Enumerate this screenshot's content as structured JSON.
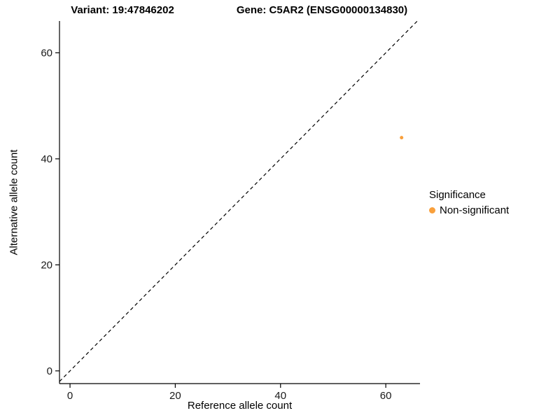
{
  "header": {
    "title_variant": "Variant: 19:47846202",
    "title_gene": "Gene: C5AR2 (ENSG00000134830)"
  },
  "chart_data": {
    "type": "scatter",
    "title": "Variant: 19:47846202 / Gene: C5AR2 (ENSG00000134830)",
    "xlabel": "Reference allele count",
    "ylabel": "Alternative allele count",
    "xlim": [
      -2,
      66.5
    ],
    "ylim": [
      -2.4,
      66
    ],
    "xticks": [
      0,
      20,
      40,
      60
    ],
    "yticks": [
      0,
      20,
      40,
      60
    ],
    "grid": false,
    "legend": {
      "title": "Significance",
      "position": "right",
      "items": [
        {
          "label": "Non-significant",
          "color": "#F9A03C"
        }
      ]
    },
    "series": [
      {
        "name": "Non-significant",
        "color": "#F9A03C",
        "point_radius": 2.5,
        "points": [
          {
            "x": 63,
            "y": 44
          }
        ]
      }
    ],
    "reference_line": {
      "style": "dashed",
      "color": "#000000",
      "from": [
        -2,
        -2
      ],
      "to": [
        66,
        66
      ]
    }
  },
  "colors": {
    "background": "#FFFFFF",
    "axis": "#000000",
    "tick_label": "#1a1a1a"
  }
}
